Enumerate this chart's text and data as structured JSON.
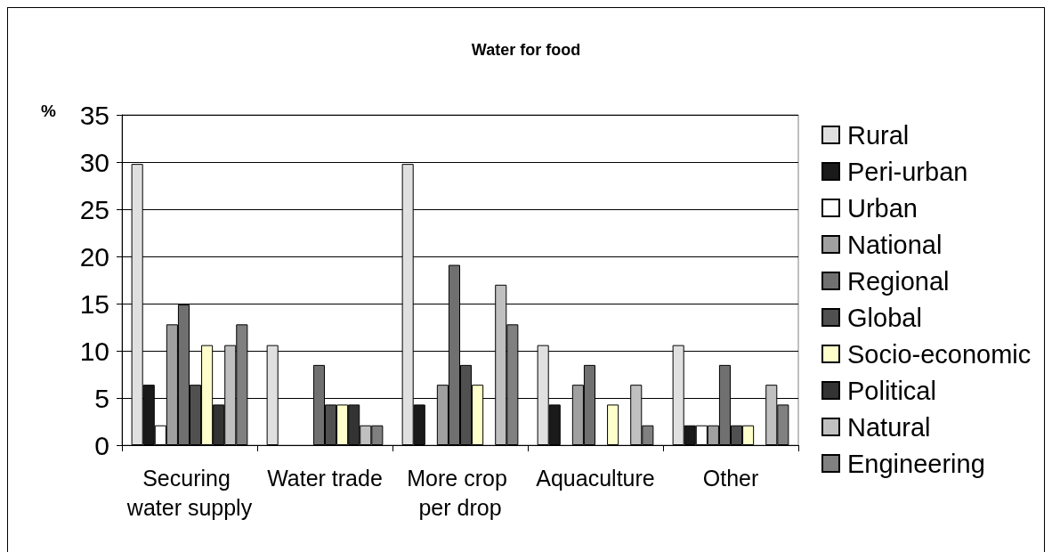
{
  "chart_data": {
    "type": "bar",
    "title": "Water for food",
    "ylabel": "%",
    "categories": [
      "Securing water supply",
      "Water trade",
      "More crop per drop",
      "Aquaculture",
      "Other"
    ],
    "series": [
      {
        "name": "Rural",
        "color": "#e0e0e0",
        "values": [
          29.8,
          10.6,
          29.8,
          10.6,
          10.6
        ]
      },
      {
        "name": "Peri-urban",
        "color": "#1a1a1a",
        "values": [
          6.4,
          0,
          4.3,
          4.3,
          2.1
        ]
      },
      {
        "name": "Urban",
        "color": "#ffffff",
        "values": [
          2.1,
          0,
          0,
          0,
          2.1
        ]
      },
      {
        "name": "National",
        "color": "#a0a0a0",
        "values": [
          12.8,
          0,
          6.4,
          6.4,
          2.1
        ]
      },
      {
        "name": "Regional",
        "color": "#707070",
        "values": [
          14.9,
          8.5,
          19.1,
          8.5,
          8.5
        ]
      },
      {
        "name": "Global",
        "color": "#505050",
        "values": [
          6.4,
          4.3,
          8.5,
          0,
          2.1
        ]
      },
      {
        "name": "Socio-economic",
        "color": "#ffffcc",
        "values": [
          10.6,
          4.3,
          6.4,
          4.3,
          2.1
        ]
      },
      {
        "name": "Political",
        "color": "#333333",
        "values": [
          4.3,
          4.3,
          0,
          0,
          0
        ]
      },
      {
        "name": "Natural",
        "color": "#c0c0c0",
        "values": [
          10.6,
          2.1,
          17.0,
          6.4,
          6.4
        ]
      },
      {
        "name": "Engineering",
        "color": "#808080",
        "values": [
          12.8,
          2.1,
          12.8,
          2.1,
          4.3
        ]
      }
    ],
    "ylim": [
      0,
      35
    ],
    "yticks": [
      0,
      5,
      10,
      15,
      20,
      25,
      30,
      35
    ],
    "grid": "y",
    "legend": "right"
  }
}
